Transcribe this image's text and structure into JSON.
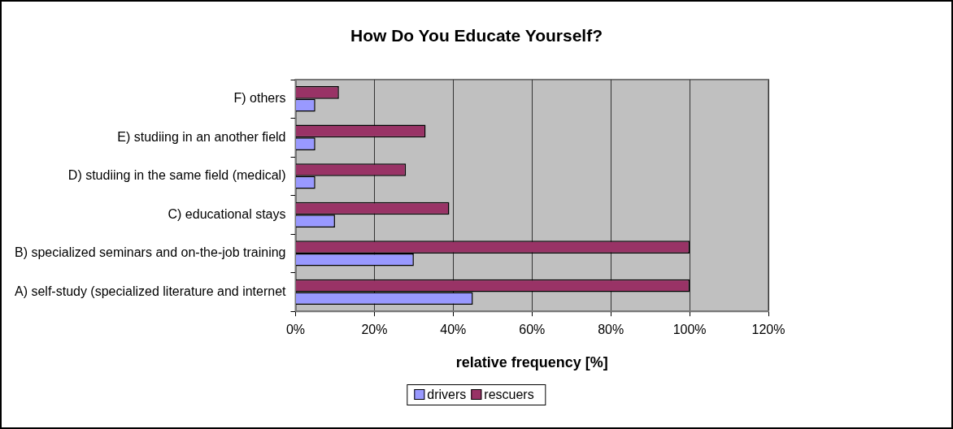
{
  "chart_data": {
    "type": "bar",
    "orientation": "horizontal",
    "title": "How Do You Educate Yourself?",
    "xlabel": "relative frequency [%]",
    "categories": [
      "F) others",
      "E) studiing in an another field",
      "D) studiing in the same field (medical)",
      "C) educational stays",
      "B) specialized seminars and on-the-job training",
      "A) self-study (specialized literature and internet"
    ],
    "series": [
      {
        "name": "drivers",
        "color": "#9999ff",
        "values": [
          5,
          5,
          5,
          10,
          30,
          45
        ]
      },
      {
        "name": "rescuers",
        "color": "#993366",
        "values": [
          11,
          33,
          28,
          39,
          100,
          100
        ]
      }
    ],
    "xlim": [
      0,
      120
    ],
    "xticks": [
      {
        "value": 0,
        "label": "0%"
      },
      {
        "value": 20,
        "label": "20%"
      },
      {
        "value": 40,
        "label": "40%"
      },
      {
        "value": 60,
        "label": "60%"
      },
      {
        "value": 80,
        "label": "80%"
      },
      {
        "value": 100,
        "label": "100%"
      },
      {
        "value": 120,
        "label": "120%"
      }
    ],
    "grid": "x",
    "legend": "bottom"
  }
}
